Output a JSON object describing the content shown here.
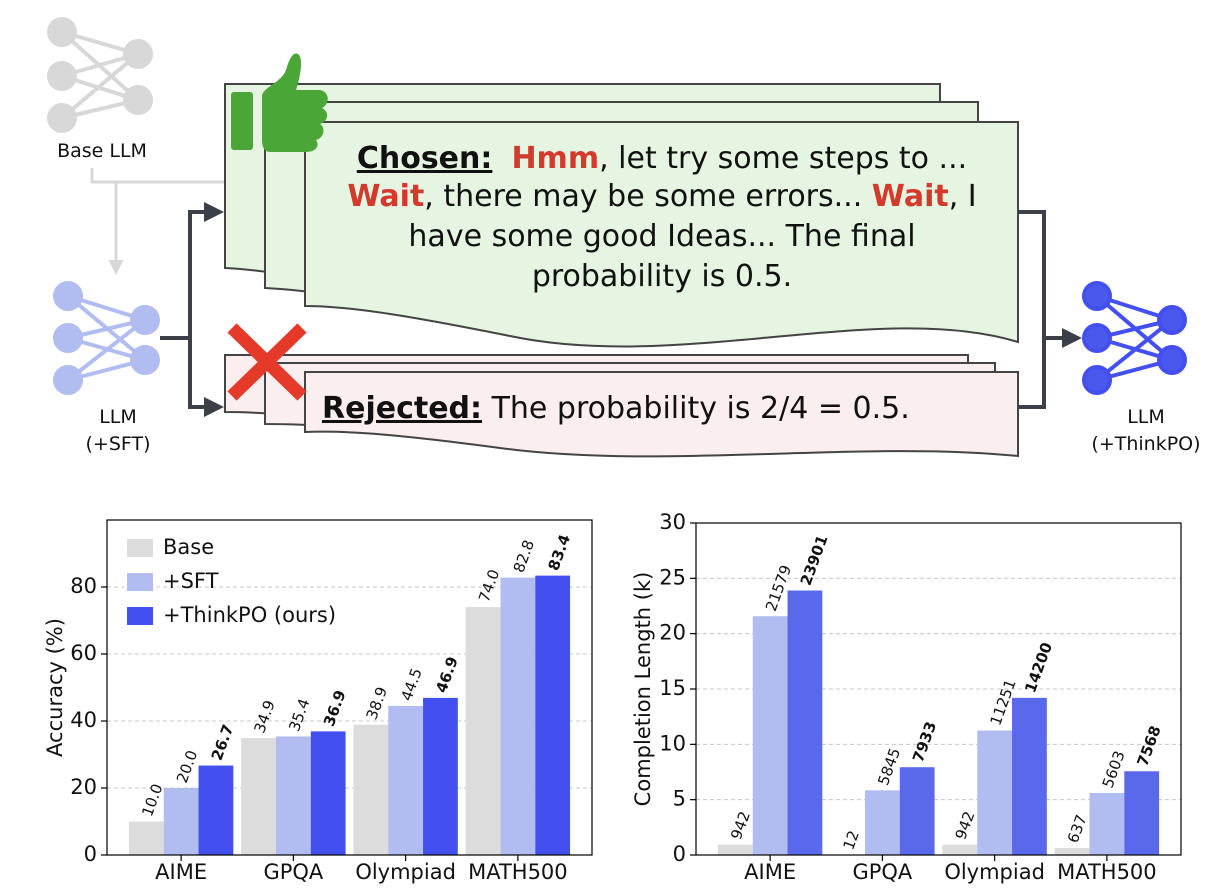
{
  "diagram": {
    "base_llm": "Base LLM",
    "sft_llm": [
      "LLM",
      "(+SFT)"
    ],
    "thinkpo_llm": [
      "LLM",
      "(+ThinkPO)"
    ],
    "chosen": {
      "label": "Chosen:",
      "lines": [
        [
          "Hmm",
          ", let try some steps to ..."
        ],
        [
          "Wait",
          ", there may be some errors... ",
          "Wait",
          ", I"
        ],
        [
          "have some good Ideas... The final"
        ],
        [
          "probability is 0.5."
        ]
      ]
    },
    "rejected": {
      "label": "Rejected:",
      "text": "The probability is 2/4 = 0.5."
    }
  },
  "chart_data": [
    {
      "type": "bar",
      "ylabel": "Accuracy (%)",
      "categories": [
        "AIME",
        "GPQA",
        "Olympiad",
        "MATH500"
      ],
      "series": [
        {
          "name": "Base",
          "color": "#dcdcdc",
          "values": [
            10.0,
            34.9,
            38.9,
            74.0
          ],
          "value_labels": [
            "10.0",
            "34.9",
            "38.9",
            "74.0"
          ]
        },
        {
          "name": "+SFT",
          "color": "#b1bdf1",
          "values": [
            20.0,
            35.4,
            44.5,
            82.8
          ],
          "value_labels": [
            "20.0",
            "35.4",
            "44.5",
            "82.8"
          ]
        },
        {
          "name": "+ThinkPO (ours)",
          "color": "#4350ef",
          "values": [
            26.7,
            36.9,
            46.9,
            83.4
          ],
          "value_labels": [
            "26.7",
            "36.9",
            "46.9",
            "83.4"
          ]
        }
      ],
      "ylim": [
        0,
        100
      ],
      "yticks": [
        0,
        20,
        40,
        60,
        80
      ],
      "grid": true,
      "legend": "upper-left"
    },
    {
      "type": "bar",
      "ylabel": "Completion Length (k)",
      "categories": [
        "AIME",
        "GPQA",
        "Olympiad",
        "MATH500"
      ],
      "series": [
        {
          "color": "#dcdcdc",
          "values": [
            0.942,
            0.012,
            0.942,
            0.637
          ],
          "value_labels": [
            "942",
            "12",
            "942",
            "637"
          ]
        },
        {
          "color": "#b1bdf1",
          "values": [
            21.579,
            5.845,
            11.251,
            5.603
          ],
          "value_labels": [
            "21579",
            "5845",
            "11251",
            "5603"
          ]
        },
        {
          "color": "#5a69ec",
          "values": [
            23.901,
            7.933,
            14.2,
            7.568
          ],
          "value_labels": [
            "23901",
            "7933",
            "14200",
            "7568"
          ]
        }
      ],
      "ylim": [
        0,
        30
      ],
      "yticks": [
        0,
        5,
        10,
        15,
        20,
        25,
        30
      ],
      "grid": true
    }
  ]
}
